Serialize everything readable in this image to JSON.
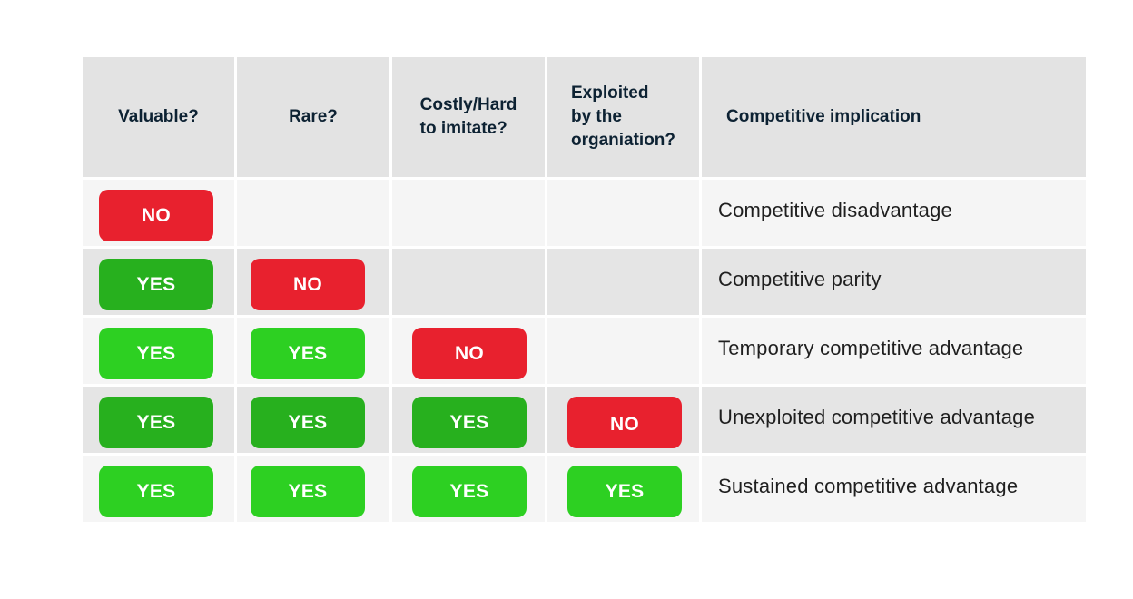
{
  "header": {
    "valuable": "Valuable?",
    "rare": "Rare?",
    "costly": "Costly/Hard\nto imitate?",
    "exploited": "Exploited\nby the\norganiation?",
    "implication": "Competitive implication"
  },
  "colors": {
    "no": "#e8212e",
    "yes_light": "#2dd022",
    "yes_dark": "#27b01e",
    "header_bg": "#e3e3e3",
    "row_light": "#f5f5f5",
    "row_dark": "#e5e5e5",
    "header_text": "#0d2233"
  },
  "rows": [
    {
      "valuable": "NO",
      "rare": "",
      "costly": "",
      "exploited": "",
      "implication": "Competitive disadvantage"
    },
    {
      "valuable": "YES",
      "rare": "NO",
      "costly": "",
      "exploited": "",
      "implication": "Competitive parity"
    },
    {
      "valuable": "YES",
      "rare": "YES",
      "costly": "NO",
      "exploited": "",
      "implication": "Temporary competitive advantage"
    },
    {
      "valuable": "YES",
      "rare": "YES",
      "costly": "YES",
      "exploited": "NO",
      "implication": "Unexploited competitive advantage"
    },
    {
      "valuable": "YES",
      "rare": "YES",
      "costly": "YES",
      "exploited": "YES",
      "implication": "Sustained competitive advantage"
    }
  ]
}
